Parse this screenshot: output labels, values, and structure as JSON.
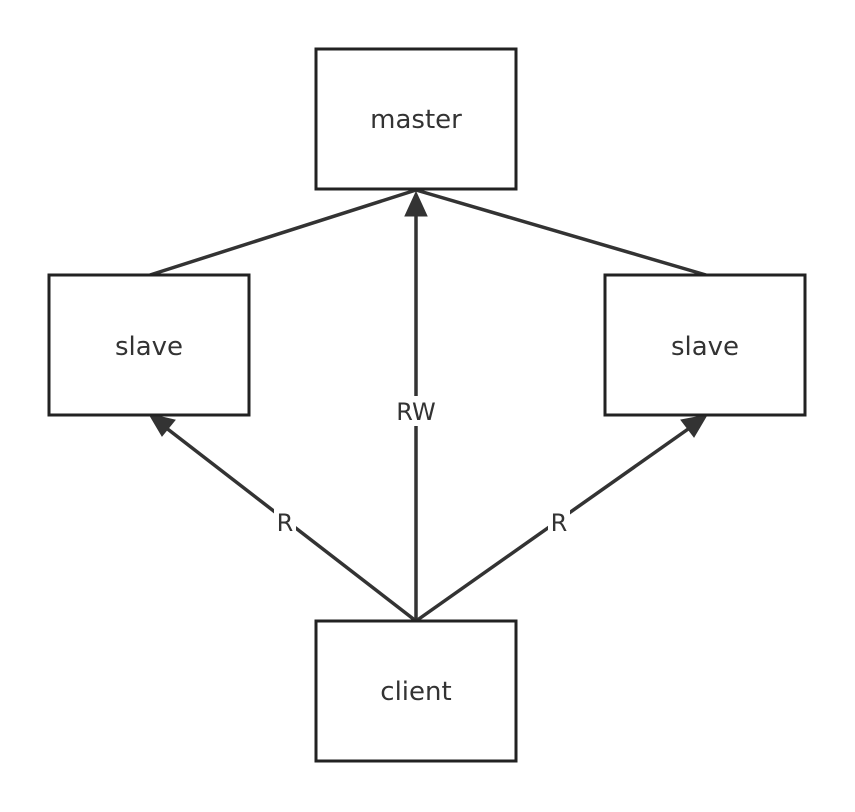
{
  "nodes": {
    "master": "master",
    "slave_left": "slave",
    "slave_right": "slave",
    "client": "client"
  },
  "edges": {
    "rw": "RW",
    "r_left": "R",
    "r_right": "R"
  },
  "colors": {
    "stroke": "#333333",
    "node_border": "#222222",
    "background": "#ffffff"
  }
}
